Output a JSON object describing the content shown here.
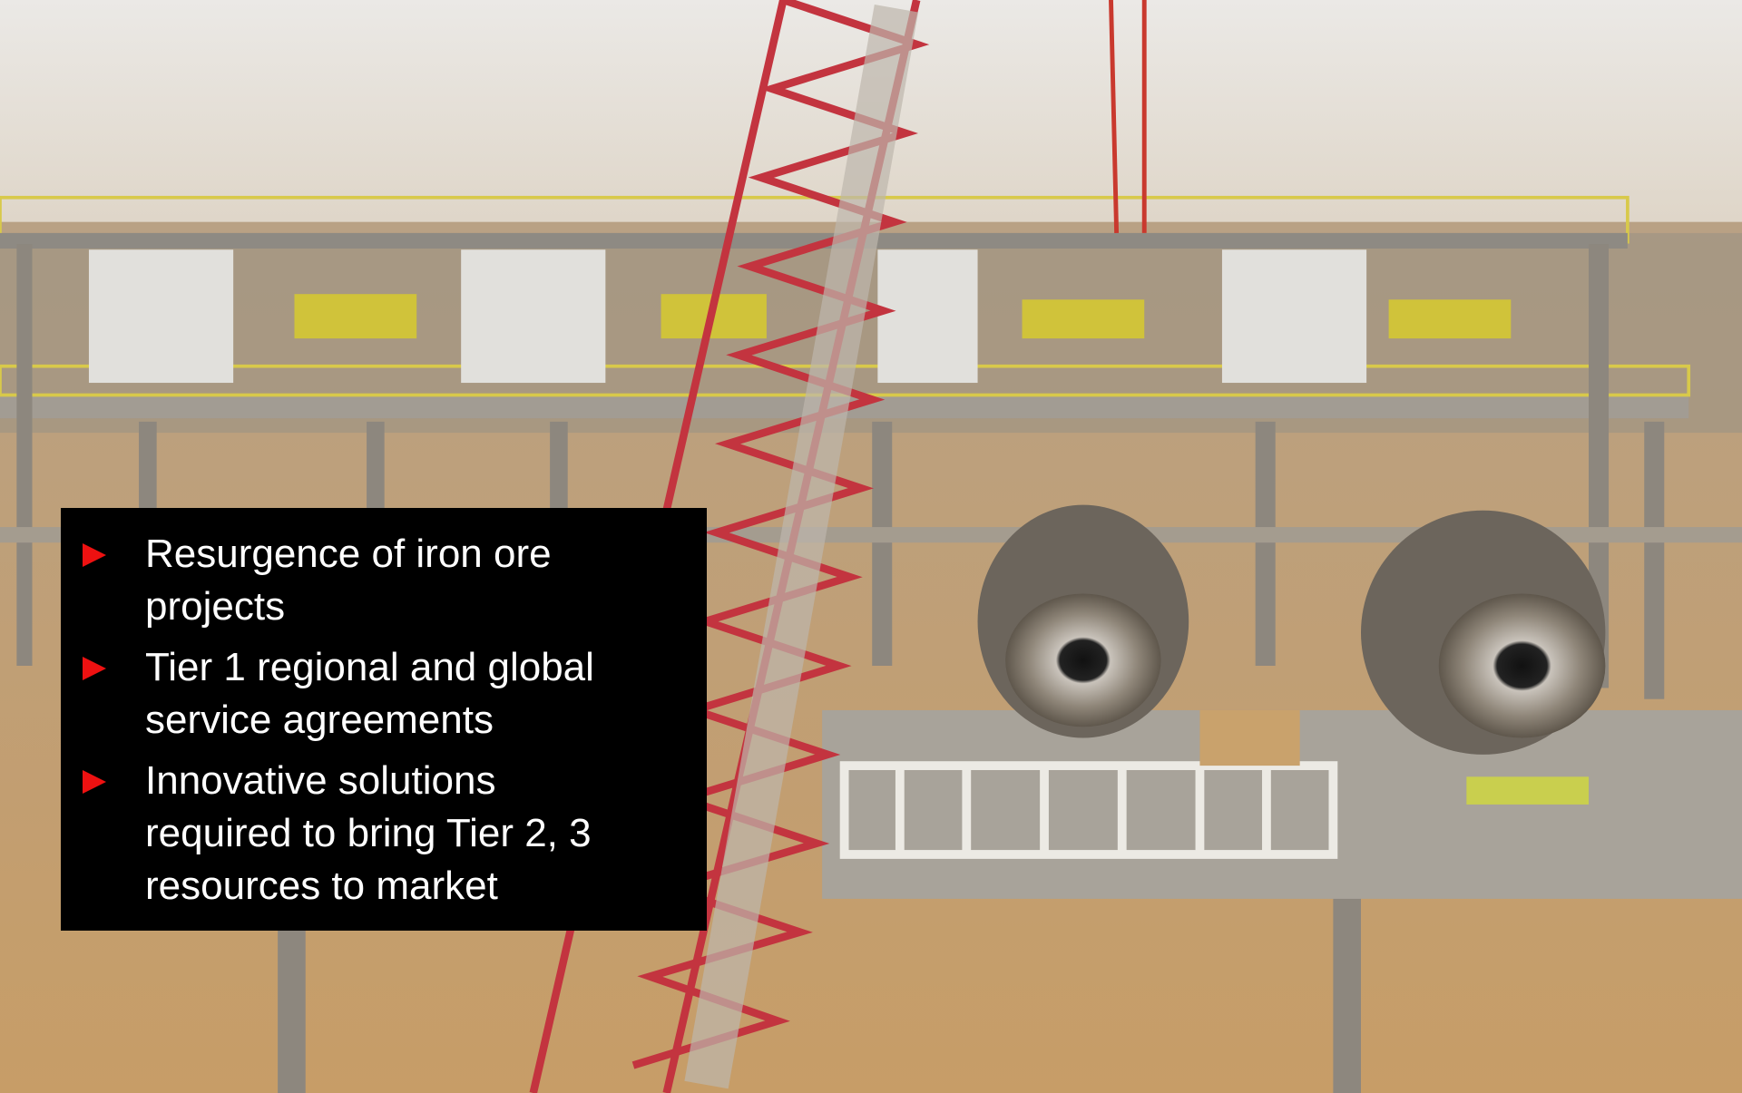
{
  "bullets": [
    "Resurgence of iron ore projects",
    "Tier 1 regional and global service agreements",
    "Innovative solutions required to bring Tier 2, 3 resources to market"
  ]
}
